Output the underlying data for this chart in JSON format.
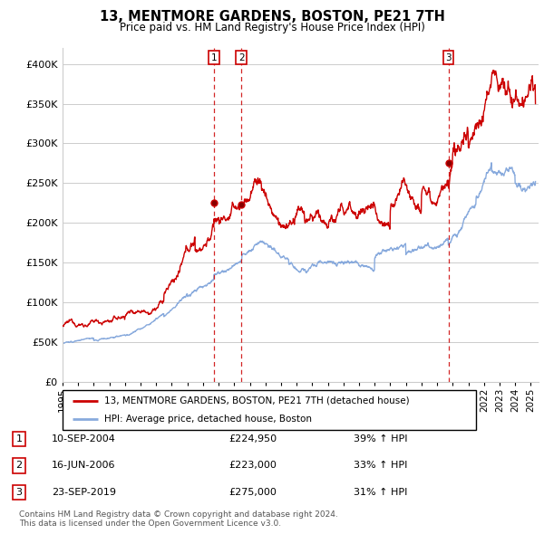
{
  "title": "13, MENTMORE GARDENS, BOSTON, PE21 7TH",
  "subtitle": "Price paid vs. HM Land Registry's House Price Index (HPI)",
  "xlim_start": 1995.0,
  "xlim_end": 2025.5,
  "ylim": [
    0,
    420000
  ],
  "yticks": [
    0,
    50000,
    100000,
    150000,
    200000,
    250000,
    300000,
    350000,
    400000
  ],
  "ytick_labels": [
    "£0",
    "£50K",
    "£100K",
    "£150K",
    "£200K",
    "£250K",
    "£300K",
    "£350K",
    "£400K"
  ],
  "xtick_years": [
    1995,
    1996,
    1997,
    1998,
    1999,
    2000,
    2001,
    2002,
    2003,
    2004,
    2005,
    2006,
    2007,
    2008,
    2009,
    2010,
    2011,
    2012,
    2013,
    2014,
    2015,
    2016,
    2017,
    2018,
    2019,
    2020,
    2021,
    2022,
    2023,
    2024,
    2025
  ],
  "sale_color": "#cc0000",
  "hpi_color": "#88aadd",
  "grid_color": "#cccccc",
  "bg_color": "#ffffff",
  "sale_dates": [
    2004.7,
    2006.45,
    2019.72
  ],
  "sale_prices": [
    224950,
    223000,
    275000
  ],
  "sale_labels": [
    "1",
    "2",
    "3"
  ],
  "legend_sale_label": "13, MENTMORE GARDENS, BOSTON, PE21 7TH (detached house)",
  "legend_hpi_label": "HPI: Average price, detached house, Boston",
  "table_rows": [
    {
      "num": "1",
      "date": "10-SEP-2004",
      "price": "£224,950",
      "pct": "39% ↑ HPI"
    },
    {
      "num": "2",
      "date": "16-JUN-2006",
      "price": "£223,000",
      "pct": "33% ↑ HPI"
    },
    {
      "num": "3",
      "date": "23-SEP-2019",
      "price": "£275,000",
      "pct": "31% ↑ HPI"
    }
  ],
  "footnote": "Contains HM Land Registry data © Crown copyright and database right 2024.\nThis data is licensed under the Open Government Licence v3.0."
}
